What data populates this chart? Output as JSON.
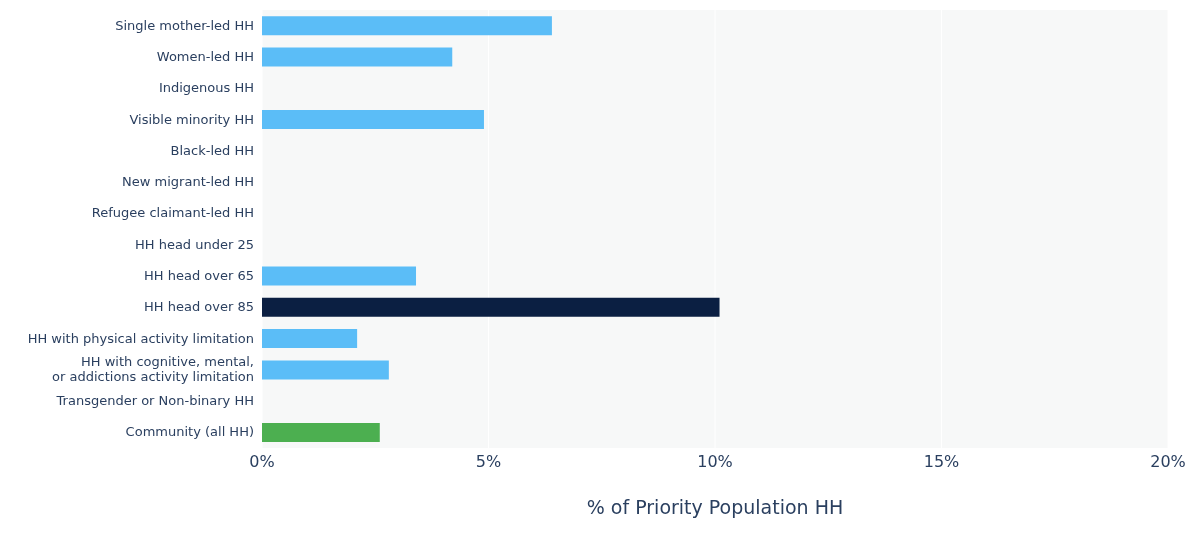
{
  "chart_data": {
    "type": "bar",
    "orientation": "horizontal",
    "xlabel": "% of Priority Population HH",
    "categories": [
      "Single mother-led HH",
      "Women-led HH",
      "Indigenous HH",
      "Visible minority HH",
      "Black-led HH",
      "New migrant-led HH",
      "Refugee claimant-led HH",
      "HH head under 25",
      "HH head over 65",
      "HH head over 85",
      "HH with physical activity limitation",
      "HH with cognitive, mental,\nor addictions activity limitation",
      "Transgender or Non-binary HH",
      "Community (all HH)"
    ],
    "values": [
      6.4,
      4.2,
      null,
      4.9,
      null,
      null,
      null,
      null,
      3.4,
      10.1,
      2.1,
      2.8,
      null,
      2.6
    ],
    "colors": [
      "#5bbdf7",
      "#5bbdf7",
      "#5bbdf7",
      "#5bbdf7",
      "#5bbdf7",
      "#5bbdf7",
      "#5bbdf7",
      "#5bbdf7",
      "#5bbdf7",
      "#0b1f42",
      "#5bbdf7",
      "#5bbdf7",
      "#5bbdf7",
      "#4caf50"
    ],
    "xlim": [
      0,
      20
    ],
    "xticks": [
      {
        "value": 0,
        "label": "0%"
      },
      {
        "value": 5,
        "label": "5%"
      },
      {
        "value": 10,
        "label": "10%"
      },
      {
        "value": 15,
        "label": "15%"
      },
      {
        "value": 20,
        "label": "20%"
      }
    ],
    "grid": "x"
  }
}
